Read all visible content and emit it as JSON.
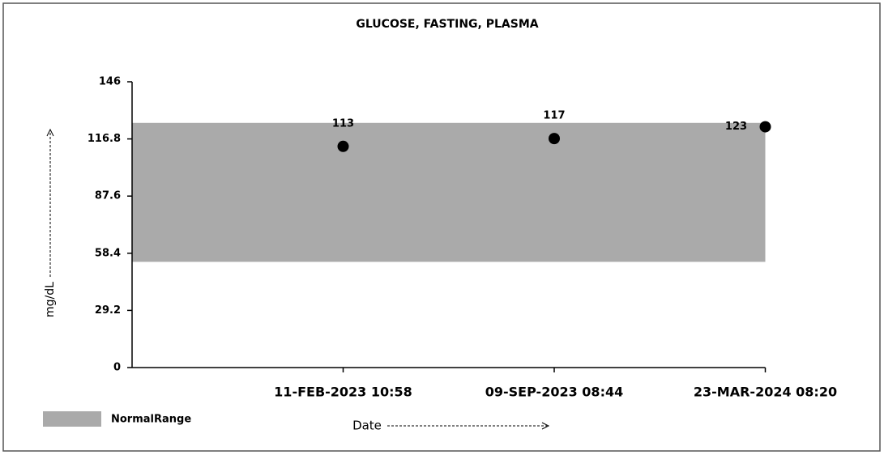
{
  "chart_data": {
    "type": "scatter",
    "title": "GLUCOSE, FASTING, PLASMA",
    "y_label": "mg/dL",
    "x_label": "Date",
    "categories": [
      "11-FEB-2023 10:58",
      "09-SEP-2023 08:44",
      "23-MAR-2024 08:20"
    ],
    "values": [
      113,
      117,
      123
    ],
    "color": "#000000",
    "ylim": [
      0,
      146
    ],
    "yticks": [
      0,
      29.2,
      58.4,
      87.6,
      116.8,
      146
    ],
    "normal_range": {
      "name": "NormalRange",
      "low": 54,
      "high": 125,
      "color": "#aaaaaa"
    }
  }
}
